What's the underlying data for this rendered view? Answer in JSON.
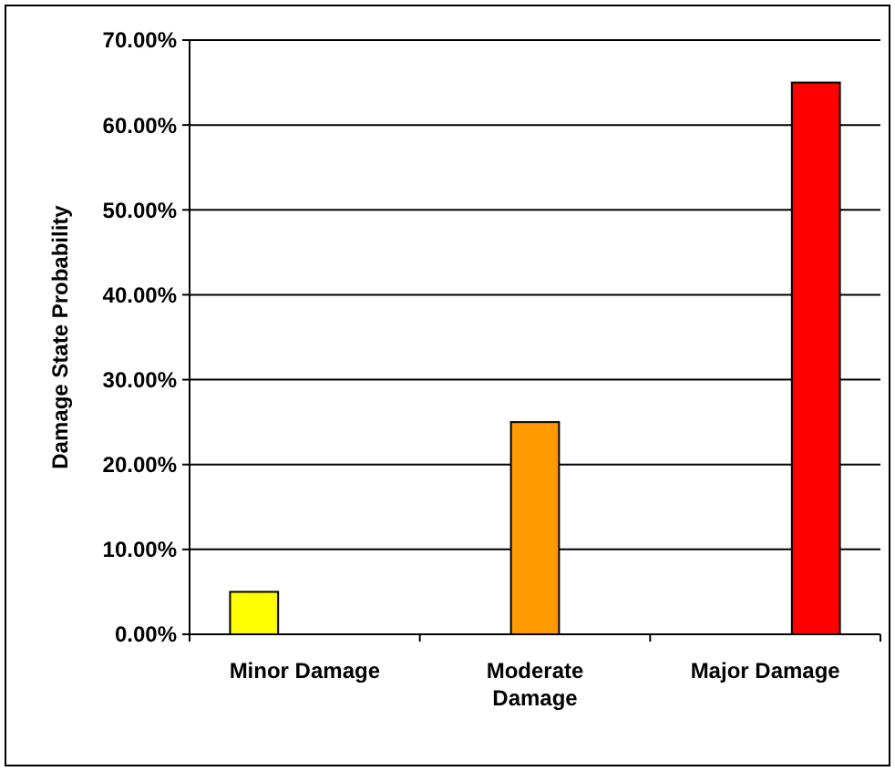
{
  "chart_data": {
    "type": "bar",
    "ylabel": "Damage State Probability",
    "categories": [
      "Minor Damage",
      "Moderate Damage",
      "Major Damage"
    ],
    "series": [
      {
        "color": "#ffff00",
        "values": [
          5,
          null,
          null
        ]
      },
      {
        "color": "#ff9900",
        "values": [
          null,
          25,
          null
        ]
      },
      {
        "color": "#ff0000",
        "values": [
          null,
          null,
          65
        ]
      }
    ],
    "ylim": [
      0,
      70
    ],
    "yticks": [
      {
        "value": 0,
        "label": "0.00%"
      },
      {
        "value": 10,
        "label": "10.00%"
      },
      {
        "value": 20,
        "label": "20.00%"
      },
      {
        "value": 30,
        "label": "30.00%"
      },
      {
        "value": 40,
        "label": "40.00%"
      },
      {
        "value": 50,
        "label": "50.00%"
      },
      {
        "value": 60,
        "label": "60.00%"
      },
      {
        "value": 70,
        "label": "70.00%"
      }
    ],
    "grid": "y"
  }
}
